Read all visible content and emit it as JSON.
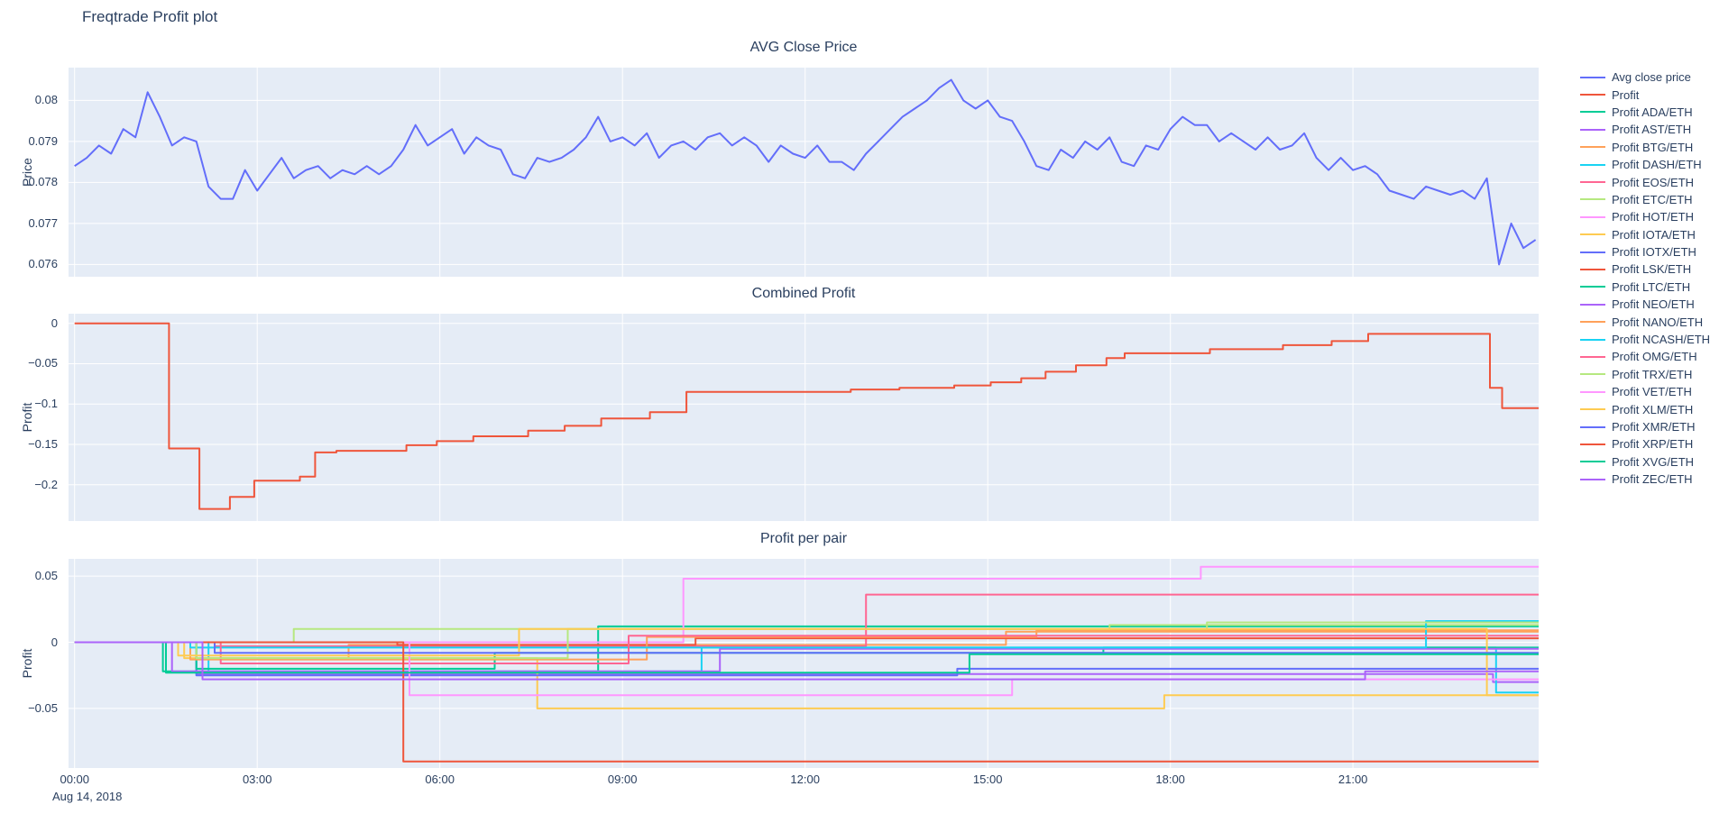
{
  "title": "Freqtrade Profit plot",
  "date_label": "Aug 14, 2018",
  "colors": {
    "text": "#2a3f5f",
    "plot_background": "#e5ecf6",
    "grid": "#ffffff",
    "avg_close": "#636efa",
    "profit": "#ef553b"
  },
  "xlim": [
    -0.1,
    24.05
  ],
  "x_tick_hours": [
    0,
    3,
    6,
    9,
    12,
    15,
    18,
    21
  ],
  "x_ticks": [
    "00:00",
    "03:00",
    "06:00",
    "09:00",
    "12:00",
    "15:00",
    "18:00",
    "21:00"
  ],
  "legend": [
    {
      "label": "Avg close price",
      "color": "#636efa"
    },
    {
      "label": "Profit",
      "color": "#ef553b"
    },
    {
      "label": "Profit ADA/ETH",
      "color": "#00cc96"
    },
    {
      "label": "Profit AST/ETH",
      "color": "#ab63fa"
    },
    {
      "label": "Profit BTG/ETH",
      "color": "#ffa15a"
    },
    {
      "label": "Profit DASH/ETH",
      "color": "#19d3f3"
    },
    {
      "label": "Profit EOS/ETH",
      "color": "#ff6692"
    },
    {
      "label": "Profit ETC/ETH",
      "color": "#b6e880"
    },
    {
      "label": "Profit HOT/ETH",
      "color": "#ff97ff"
    },
    {
      "label": "Profit IOTA/ETH",
      "color": "#fecb52"
    },
    {
      "label": "Profit IOTX/ETH",
      "color": "#636efa"
    },
    {
      "label": "Profit LSK/ETH",
      "color": "#ef553b"
    },
    {
      "label": "Profit LTC/ETH",
      "color": "#00cc96"
    },
    {
      "label": "Profit NEO/ETH",
      "color": "#ab63fa"
    },
    {
      "label": "Profit NANO/ETH",
      "color": "#ffa15a"
    },
    {
      "label": "Profit NCASH/ETH",
      "color": "#19d3f3"
    },
    {
      "label": "Profit OMG/ETH",
      "color": "#ff6692"
    },
    {
      "label": "Profit TRX/ETH",
      "color": "#b6e880"
    },
    {
      "label": "Profit VET/ETH",
      "color": "#ff97ff"
    },
    {
      "label": "Profit XLM/ETH",
      "color": "#fecb52"
    },
    {
      "label": "Profit XMR/ETH",
      "color": "#636efa"
    },
    {
      "label": "Profit XRP/ETH",
      "color": "#ef553b"
    },
    {
      "label": "Profit XVG/ETH",
      "color": "#00cc96"
    },
    {
      "label": "Profit ZEC/ETH",
      "color": "#ab63fa"
    }
  ],
  "chart_data": [
    {
      "type": "line",
      "title": "AVG Close Price",
      "ylabel": "Price",
      "xlabel": "",
      "grid": true,
      "ylim": [
        0.0757,
        0.0808
      ],
      "yticks": [
        {
          "v": 0.076,
          "label": "0.076"
        },
        {
          "v": 0.077,
          "label": "0.077"
        },
        {
          "v": 0.078,
          "label": "0.078"
        },
        {
          "v": 0.079,
          "label": "0.079"
        },
        {
          "v": 0.08,
          "label": "0.08"
        }
      ],
      "series": [
        {
          "name": "Avg close price",
          "color": "#636efa",
          "step": false,
          "x_start": 0,
          "x_step": 0.2,
          "values": [
            0.0784,
            0.0786,
            0.0789,
            0.0787,
            0.0793,
            0.0791,
            0.0802,
            0.0796,
            0.0789,
            0.0791,
            0.079,
            0.0779,
            0.0776,
            0.0776,
            0.0783,
            0.0778,
            0.0782,
            0.0786,
            0.0781,
            0.0783,
            0.0784,
            0.0781,
            0.0783,
            0.0782,
            0.0784,
            0.0782,
            0.0784,
            0.0788,
            0.0794,
            0.0789,
            0.0791,
            0.0793,
            0.0787,
            0.0791,
            0.0789,
            0.0788,
            0.0782,
            0.0781,
            0.0786,
            0.0785,
            0.0786,
            0.0788,
            0.0791,
            0.0796,
            0.079,
            0.0791,
            0.0789,
            0.0792,
            0.0786,
            0.0789,
            0.079,
            0.0788,
            0.0791,
            0.0792,
            0.0789,
            0.0791,
            0.0789,
            0.0785,
            0.0789,
            0.0787,
            0.0786,
            0.0789,
            0.0785,
            0.0785,
            0.0783,
            0.0787,
            0.079,
            0.0793,
            0.0796,
            0.0798,
            0.08,
            0.0803,
            0.0805,
            0.08,
            0.0798,
            0.08,
            0.0796,
            0.0795,
            0.079,
            0.0784,
            0.0783,
            0.0788,
            0.0786,
            0.079,
            0.0788,
            0.0791,
            0.0785,
            0.0784,
            0.0789,
            0.0788,
            0.0793,
            0.0796,
            0.0794,
            0.0794,
            0.079,
            0.0792,
            0.079,
            0.0788,
            0.0791,
            0.0788,
            0.0789,
            0.0792,
            0.0786,
            0.0783,
            0.0786,
            0.0783,
            0.0784,
            0.0782,
            0.0778,
            0.0777,
            0.0776,
            0.0779,
            0.0778,
            0.0777,
            0.0778,
            0.0776,
            0.0781,
            0.076,
            0.077,
            0.0764,
            0.0766
          ]
        }
      ]
    },
    {
      "type": "line",
      "title": "Combined Profit",
      "ylabel": "Profit",
      "xlabel": "",
      "grid": true,
      "ylim": [
        -0.245,
        0.012
      ],
      "yticks": [
        {
          "v": 0,
          "label": "0"
        },
        {
          "v": -0.05,
          "label": "−0.05"
        },
        {
          "v": -0.1,
          "label": "−0.1"
        },
        {
          "v": -0.15,
          "label": "−0.15"
        },
        {
          "v": -0.2,
          "label": "−0.2"
        }
      ],
      "series": [
        {
          "name": "Profit",
          "color": "#ef553b",
          "step": true,
          "points": [
            [
              0,
              0
            ],
            [
              1.55,
              -0.155
            ],
            [
              2.05,
              -0.23
            ],
            [
              2.55,
              -0.215
            ],
            [
              2.95,
              -0.195
            ],
            [
              3.7,
              -0.19
            ],
            [
              3.95,
              -0.16
            ],
            [
              4.3,
              -0.158
            ],
            [
              5.45,
              -0.151
            ],
            [
              5.95,
              -0.146
            ],
            [
              6.55,
              -0.14
            ],
            [
              7.45,
              -0.133
            ],
            [
              8.05,
              -0.127
            ],
            [
              8.65,
              -0.118
            ],
            [
              9.45,
              -0.11
            ],
            [
              10.05,
              -0.085
            ],
            [
              12.75,
              -0.082
            ],
            [
              13.55,
              -0.08
            ],
            [
              14.45,
              -0.077
            ],
            [
              15.05,
              -0.073
            ],
            [
              15.55,
              -0.068
            ],
            [
              15.95,
              -0.06
            ],
            [
              16.45,
              -0.052
            ],
            [
              16.95,
              -0.043
            ],
            [
              17.25,
              -0.037
            ],
            [
              18.65,
              -0.032
            ],
            [
              19.85,
              -0.027
            ],
            [
              20.65,
              -0.022
            ],
            [
              21.25,
              -0.013
            ],
            [
              23.25,
              -0.08
            ],
            [
              23.45,
              -0.105
            ]
          ]
        }
      ]
    },
    {
      "type": "line",
      "title": "Profit per pair",
      "ylabel": "Profit",
      "xlabel": "",
      "grid": true,
      "ylim": [
        -0.095,
        0.063
      ],
      "yticks": [
        {
          "v": 0.05,
          "label": "0.05"
        },
        {
          "v": 0,
          "label": "0"
        },
        {
          "v": -0.05,
          "label": "−0.05"
        }
      ],
      "series": [
        {
          "name": "Profit ADA/ETH",
          "color": "#00cc96",
          "step": true,
          "points": [
            [
              0,
              0
            ],
            [
              1.45,
              -0.022
            ],
            [
              8.6,
              0.012
            ]
          ]
        },
        {
          "name": "Profit AST/ETH",
          "color": "#ab63fa",
          "step": true,
          "points": [
            [
              0,
              0
            ],
            [
              2.0,
              -0.024
            ],
            [
              23.3,
              -0.03
            ]
          ]
        },
        {
          "name": "Profit BTG/ETH",
          "color": "#ffa15a",
          "step": true,
          "points": [
            [
              0,
              0
            ],
            [
              2.1,
              -0.012
            ],
            [
              4.5,
              -0.002
            ],
            [
              15.3,
              0.008
            ]
          ]
        },
        {
          "name": "Profit DASH/ETH",
          "color": "#19d3f3",
          "step": true,
          "points": [
            [
              0,
              0
            ],
            [
              2.2,
              -0.022
            ],
            [
              10.3,
              -0.004
            ],
            [
              23.35,
              -0.038
            ]
          ]
        },
        {
          "name": "Profit EOS/ETH",
          "color": "#ff6692",
          "step": true,
          "points": [
            [
              0,
              0
            ],
            [
              2.3,
              -0.003
            ],
            [
              13.0,
              0.036
            ]
          ]
        },
        {
          "name": "Profit ETC/ETH",
          "color": "#b6e880",
          "step": true,
          "points": [
            [
              0,
              0
            ],
            [
              3.6,
              0.01
            ],
            [
              17.0,
              0.013
            ]
          ]
        },
        {
          "name": "Profit HOT/ETH",
          "color": "#ff97ff",
          "step": true,
          "points": [
            [
              0,
              0
            ],
            [
              10.0,
              0.048
            ],
            [
              18.5,
              0.057
            ]
          ]
        },
        {
          "name": "Profit IOTA/ETH",
          "color": "#fecb52",
          "step": true,
          "points": [
            [
              0,
              0
            ],
            [
              1.8,
              -0.012
            ],
            [
              7.6,
              -0.05
            ],
            [
              17.9,
              -0.04
            ]
          ]
        },
        {
          "name": "Profit IOTX/ETH",
          "color": "#636efa",
          "step": true,
          "points": [
            [
              0,
              0
            ],
            [
              2.0,
              -0.025
            ],
            [
              14.5,
              -0.02
            ]
          ]
        },
        {
          "name": "Profit LSK/ETH",
          "color": "#ef553b",
          "step": true,
          "points": [
            [
              0,
              0
            ],
            [
              5.3,
              -0.002
            ],
            [
              10.2,
              0.003
            ]
          ]
        },
        {
          "name": "Profit LTC/ETH",
          "color": "#00cc96",
          "step": true,
          "points": [
            [
              0,
              0
            ],
            [
              2.0,
              -0.02
            ],
            [
              6.9,
              -0.008
            ],
            [
              16.9,
              -0.004
            ]
          ]
        },
        {
          "name": "Profit NEO/ETH",
          "color": "#ab63fa",
          "step": true,
          "points": [
            [
              0,
              0
            ],
            [
              1.6,
              -0.022
            ],
            [
              10.6,
              -0.005
            ]
          ]
        },
        {
          "name": "Profit NANO/ETH",
          "color": "#ffa15a",
          "step": true,
          "points": [
            [
              0,
              0
            ],
            [
              1.9,
              -0.013
            ],
            [
              9.4,
              0.004
            ],
            [
              15.8,
              0.009
            ]
          ]
        },
        {
          "name": "Profit NCASH/ETH",
          "color": "#19d3f3",
          "step": true,
          "points": [
            [
              0,
              0
            ],
            [
              1.9,
              -0.004
            ],
            [
              22.2,
              0.016
            ]
          ]
        },
        {
          "name": "Profit OMG/ETH",
          "color": "#ff6692",
          "step": true,
          "points": [
            [
              0,
              0
            ],
            [
              2.4,
              -0.016
            ],
            [
              9.1,
              0.005
            ]
          ]
        },
        {
          "name": "Profit TRX/ETH",
          "color": "#b6e880",
          "step": true,
          "points": [
            [
              0,
              0
            ],
            [
              2.0,
              -0.012
            ],
            [
              8.1,
              0.01
            ],
            [
              18.6,
              0.015
            ]
          ]
        },
        {
          "name": "Profit VET/ETH",
          "color": "#ff97ff",
          "step": true,
          "points": [
            [
              0,
              0
            ],
            [
              5.5,
              -0.04
            ],
            [
              15.4,
              -0.028
            ]
          ]
        },
        {
          "name": "Profit XLM/ETH",
          "color": "#fecb52",
          "step": true,
          "points": [
            [
              0,
              0
            ],
            [
              1.7,
              -0.01
            ],
            [
              7.3,
              0.01
            ],
            [
              23.2,
              -0.04
            ]
          ]
        },
        {
          "name": "Profit XMR/ETH",
          "color": "#636efa",
          "step": true,
          "points": [
            [
              0,
              0
            ],
            [
              2.3,
              -0.008
            ]
          ]
        },
        {
          "name": "Profit XRP/ETH",
          "color": "#ef553b",
          "step": true,
          "points": [
            [
              0,
              0
            ],
            [
              5.4,
              -0.09
            ]
          ]
        },
        {
          "name": "Profit XVG/ETH",
          "color": "#00cc96",
          "step": true,
          "points": [
            [
              0,
              0
            ],
            [
              1.5,
              -0.023
            ],
            [
              14.7,
              -0.009
            ]
          ]
        },
        {
          "name": "Profit ZEC/ETH",
          "color": "#ab63fa",
          "step": true,
          "points": [
            [
              0,
              0
            ],
            [
              2.1,
              -0.028
            ],
            [
              21.2,
              -0.022
            ]
          ]
        }
      ]
    }
  ]
}
